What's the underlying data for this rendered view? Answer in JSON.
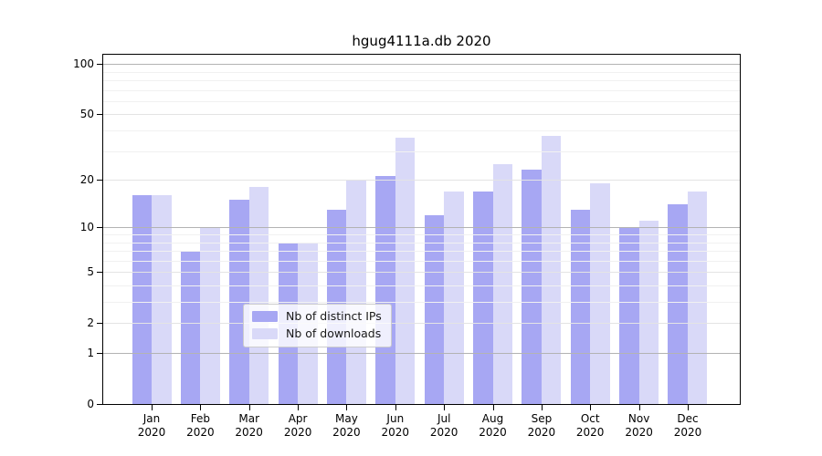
{
  "title": "hgug4111a.db 2020",
  "chart_data": {
    "type": "bar",
    "title": "hgug4111a.db 2020",
    "categories": [
      "Jan",
      "Feb",
      "Mar",
      "Apr",
      "May",
      "Jun",
      "Jul",
      "Aug",
      "Sep",
      "Oct",
      "Nov",
      "Dec"
    ],
    "year_label": "2020",
    "series": [
      {
        "name": "Nb of distinct IPs",
        "color": "#a7a7f3",
        "values": [
          16,
          7,
          15,
          8,
          13,
          21,
          12,
          17,
          23,
          13,
          10,
          14
        ]
      },
      {
        "name": "Nb of downloads",
        "color": "#d9d9f8",
        "values": [
          16,
          10,
          18,
          8,
          20,
          36,
          17,
          25,
          37,
          19,
          11,
          17
        ]
      }
    ],
    "yscale": "log1p",
    "ylim": [
      0,
      113
    ],
    "yticks": [
      0,
      1,
      2,
      5,
      10,
      20,
      50,
      100
    ],
    "grid_decade_lines": [
      1,
      10,
      100
    ],
    "grid_major_lines": [
      2,
      5,
      20,
      50
    ],
    "grid_minor_lines": [
      3,
      4,
      6,
      7,
      8,
      9,
      30,
      40,
      60,
      70,
      80,
      90
    ],
    "grid": "horizontal",
    "legend_position": "lower-center-inside",
    "xlabel": "",
    "ylabel": ""
  },
  "colors": {
    "axis": "#000000",
    "grid_decade": "#b3b3b3",
    "grid_major": "#e4e4e4",
    "grid_minor": "#f1f1f1",
    "background": "#ffffff",
    "legend_border": "#cccccc"
  }
}
